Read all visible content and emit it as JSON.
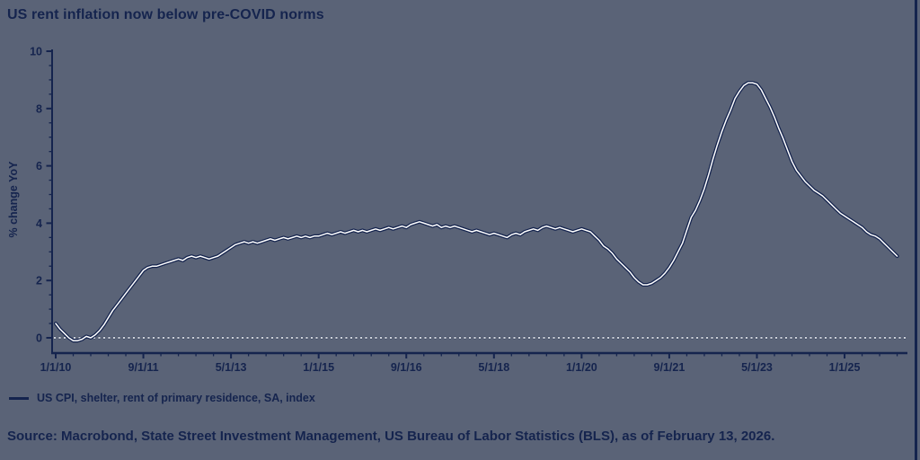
{
  "header": {
    "title": "US rent inflation now below pre-COVID norms"
  },
  "chart_data": {
    "type": "line",
    "title": "US rent inflation now below pre-COVID norms",
    "xlabel": "",
    "ylabel": "% change YoY",
    "ylim": [
      -0.5,
      10
    ],
    "y_ticks": [
      0,
      2,
      4,
      6,
      8,
      10
    ],
    "x_tick_labels": [
      "1/1/10",
      "9/1/11",
      "5/1/13",
      "1/1/15",
      "9/1/16",
      "5/1/18",
      "1/1/20",
      "9/1/21",
      "5/1/23",
      "1/1/25"
    ],
    "x_tick_interval_months": 20,
    "x_start": "1/1/2010",
    "x_end": "1/1/2026",
    "frequency": "monthly",
    "grid": "zero-line-only",
    "zero_line_style": "dotted-white-over-navy",
    "legend_position": "below-left",
    "series": [
      {
        "name": "US CPI, shelter, rent of primary residence, SA, index",
        "style": "white line with navy outline",
        "values": [
          0.5,
          0.3,
          0.15,
          0,
          -0.1,
          -0.1,
          -0.05,
          0.05,
          0,
          0.1,
          0.25,
          0.45,
          0.7,
          0.95,
          1.15,
          1.35,
          1.55,
          1.75,
          1.95,
          2.15,
          2.35,
          2.45,
          2.5,
          2.5,
          2.55,
          2.6,
          2.65,
          2.7,
          2.75,
          2.7,
          2.8,
          2.85,
          2.8,
          2.85,
          2.8,
          2.75,
          2.8,
          2.85,
          2.95,
          3.05,
          3.15,
          3.25,
          3.3,
          3.35,
          3.3,
          3.35,
          3.3,
          3.35,
          3.4,
          3.45,
          3.4,
          3.45,
          3.5,
          3.45,
          3.5,
          3.55,
          3.5,
          3.55,
          3.5,
          3.55,
          3.55,
          3.6,
          3.65,
          3.6,
          3.65,
          3.7,
          3.65,
          3.7,
          3.75,
          3.7,
          3.75,
          3.7,
          3.75,
          3.8,
          3.75,
          3.8,
          3.85,
          3.8,
          3.85,
          3.9,
          3.85,
          3.95,
          4.0,
          4.05,
          4.0,
          3.95,
          3.9,
          3.95,
          3.85,
          3.9,
          3.85,
          3.9,
          3.85,
          3.8,
          3.75,
          3.7,
          3.75,
          3.7,
          3.65,
          3.6,
          3.65,
          3.6,
          3.55,
          3.5,
          3.6,
          3.65,
          3.6,
          3.7,
          3.75,
          3.8,
          3.75,
          3.85,
          3.9,
          3.85,
          3.8,
          3.85,
          3.8,
          3.75,
          3.7,
          3.75,
          3.8,
          3.75,
          3.7,
          3.55,
          3.4,
          3.2,
          3.1,
          2.95,
          2.75,
          2.6,
          2.45,
          2.3,
          2.1,
          1.95,
          1.85,
          1.85,
          1.9,
          2.0,
          2.1,
          2.25,
          2.45,
          2.7,
          3.0,
          3.3,
          3.75,
          4.2,
          4.45,
          4.8,
          5.2,
          5.7,
          6.25,
          6.75,
          7.2,
          7.6,
          7.95,
          8.35,
          8.6,
          8.8,
          8.9,
          8.9,
          8.85,
          8.65,
          8.35,
          8.05,
          7.7,
          7.3,
          6.95,
          6.55,
          6.15,
          5.85,
          5.65,
          5.45,
          5.3,
          5.15,
          5.05,
          4.95,
          4.8,
          4.65,
          4.5,
          4.35,
          4.25,
          4.15,
          4.05,
          3.95,
          3.85,
          3.7,
          3.6,
          3.55,
          3.45,
          3.3,
          3.15,
          3.0,
          2.85
        ]
      }
    ]
  },
  "legend": {
    "items": [
      {
        "label": "US CPI, shelter, rent of primary residence, SA, index",
        "swatch_color": "#15244e"
      }
    ]
  },
  "footer": {
    "source": "Source: Macrobond, State Street Investment Management, US Bureau of Labor Statistics (BLS), as of February 13, 2026."
  },
  "colors": {
    "background": "#5a6377",
    "text": "#15244e",
    "axis": "#15244e",
    "line_outline": "#15244e",
    "line_core": "#ffffff"
  }
}
